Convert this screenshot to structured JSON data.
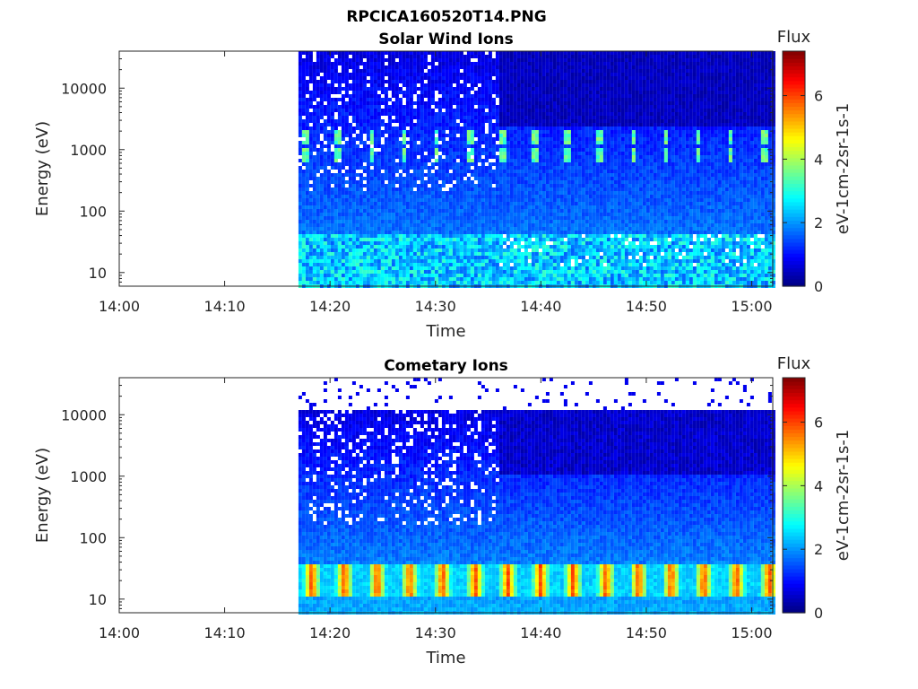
{
  "figure_title": "RPCICA160520T14.PNG",
  "chart_data": [
    {
      "type": "heatmap",
      "title": "Solar Wind Ions",
      "xlabel": "Time",
      "ylabel": "Energy (eV)",
      "x_ticks": [
        "14:00",
        "14:10",
        "14:20",
        "14:30",
        "14:40",
        "14:50",
        "15:00"
      ],
      "x_range": [
        "14:00",
        "15:02"
      ],
      "y_scale": "log",
      "y_ticks": [
        "10",
        "100",
        "1000",
        "10000"
      ],
      "y_range": [
        6,
        40000
      ],
      "data_start": "14:17",
      "data_end": "15:02",
      "colorbar": {
        "title": "Flux",
        "label": "eV-1cm-2sr-1s-1",
        "ticks": [
          "0",
          "2",
          "4",
          "6"
        ],
        "range": [
          0,
          7.4
        ],
        "colormap": "jet"
      },
      "features": "Beams near 1000 eV repeating about every 3 min; fill ~1-2 flux at low energies"
    },
    {
      "type": "heatmap",
      "title": "Cometary Ions",
      "xlabel": "Time",
      "ylabel": "Energy (eV)",
      "x_ticks": [
        "14:00",
        "14:10",
        "14:20",
        "14:30",
        "14:40",
        "14:50",
        "15:00"
      ],
      "x_range": [
        "14:00",
        "15:02"
      ],
      "y_scale": "log",
      "y_ticks": [
        "10",
        "100",
        "1000",
        "10000"
      ],
      "y_range": [
        6,
        40000
      ],
      "data_start": "14:17",
      "data_end": "15:02",
      "colorbar": {
        "title": "Flux",
        "label": "eV-1cm-2sr-1s-1",
        "ticks": [
          "0",
          "2",
          "4",
          "6"
        ],
        "range": [
          0,
          7.4
        ],
        "colormap": "jet"
      },
      "features": "Intense peaks ~5-6 flux near 20 eV repeating about every 3 min; data above 11000 eV sparse"
    }
  ]
}
